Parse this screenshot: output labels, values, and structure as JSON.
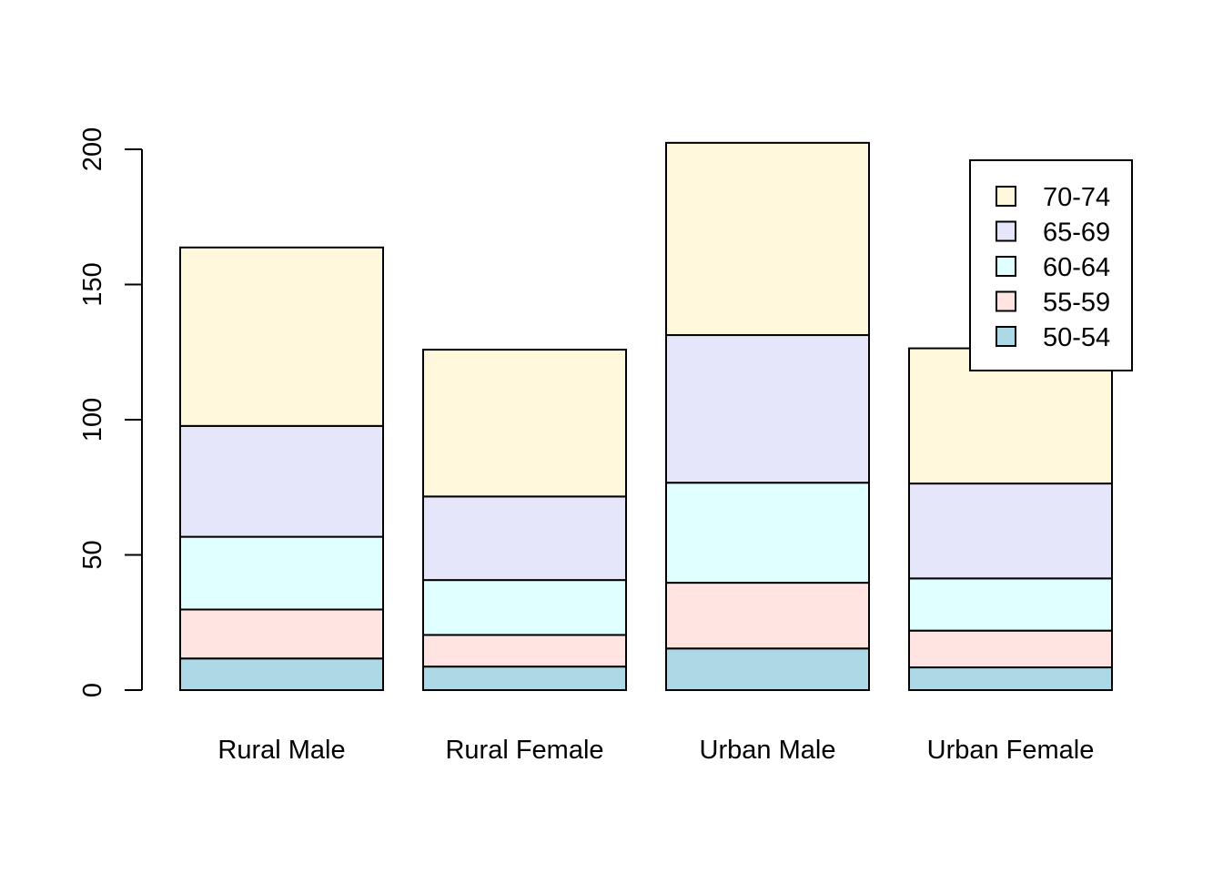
{
  "chart_data": {
    "type": "bar",
    "stacked": true,
    "title": "",
    "xlabel": "",
    "ylabel": "",
    "categories": [
      "Rural Male",
      "Rural Female",
      "Urban Male",
      "Urban Female"
    ],
    "series": [
      {
        "name": "50-54",
        "values": [
          11.7,
          8.7,
          15.4,
          8.4
        ],
        "color": "#ADD8E6"
      },
      {
        "name": "55-59",
        "values": [
          18.1,
          11.7,
          24.3,
          13.6
        ],
        "color": "#FFE4E1"
      },
      {
        "name": "60-64",
        "values": [
          26.9,
          20.3,
          37.0,
          19.3
        ],
        "color": "#E0FFFF"
      },
      {
        "name": "65-69",
        "values": [
          41.0,
          30.9,
          54.6,
          35.1
        ],
        "color": "#E6E6FA"
      },
      {
        "name": "70-74",
        "values": [
          66.0,
          54.3,
          71.1,
          50.0
        ],
        "color": "#FFF8DC"
      }
    ],
    "y_ticks": [
      "0",
      "50",
      "100",
      "150",
      "200"
    ],
    "ylim": [
      0,
      200
    ],
    "grid": false,
    "legend": {
      "position": "top-right",
      "entries": [
        "70-74",
        "65-69",
        "60-64",
        "55-59",
        "50-54"
      ]
    }
  }
}
